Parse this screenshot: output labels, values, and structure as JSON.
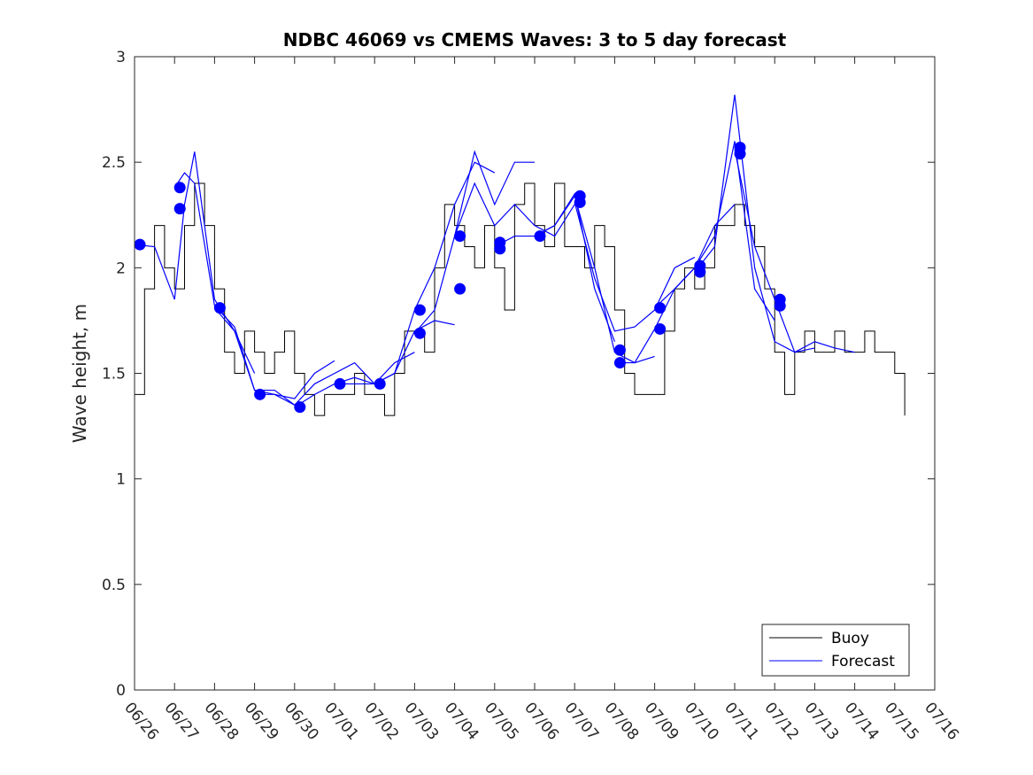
{
  "chart_data": {
    "type": "line",
    "title": "NDBC 46069 vs CMEMS Waves: 3 to 5 day forecast",
    "xlabel": "",
    "ylabel": "Wave height, m",
    "xlim": [
      "06/26",
      "07/16"
    ],
    "ylim": [
      0,
      3
    ],
    "x_ticks": [
      "06/26",
      "06/27",
      "06/28",
      "06/29",
      "06/30",
      "07/01",
      "07/02",
      "07/03",
      "07/04",
      "07/05",
      "07/06",
      "07/07",
      "07/08",
      "07/09",
      "07/10",
      "07/11",
      "07/12",
      "07/13",
      "07/14",
      "07/15",
      "07/16"
    ],
    "y_ticks": [
      "0",
      "0.5",
      "1",
      "1.5",
      "2",
      "2.5",
      "3"
    ],
    "grid": false,
    "legend": {
      "placement": "bottom-right",
      "entries": [
        "Buoy",
        "Forecast"
      ]
    },
    "colors": {
      "buoy": "#000000",
      "forecast": "#0000ff",
      "axes": "#262626"
    },
    "series": [
      {
        "name": "Buoy",
        "x": [
          "06/26 00:00",
          "06/26 06:00",
          "06/26 12:00",
          "06/26 18:00",
          "06/27 00:00",
          "06/27 06:00",
          "06/27 12:00",
          "06/27 18:00",
          "06/28 00:00",
          "06/28 06:00",
          "06/28 12:00",
          "06/28 18:00",
          "06/29 00:00",
          "06/29 06:00",
          "06/29 12:00",
          "06/29 18:00",
          "06/30 00:00",
          "06/30 06:00",
          "06/30 12:00",
          "06/30 18:00",
          "07/01 00:00",
          "07/01 06:00",
          "07/01 12:00",
          "07/01 18:00",
          "07/02 00:00",
          "07/02 06:00",
          "07/02 12:00",
          "07/02 18:00",
          "07/03 00:00",
          "07/03 06:00",
          "07/03 12:00",
          "07/03 18:00",
          "07/04 00:00",
          "07/04 06:00",
          "07/04 12:00",
          "07/04 18:00",
          "07/05 00:00",
          "07/05 06:00",
          "07/05 12:00",
          "07/05 18:00",
          "07/06 00:00",
          "07/06 06:00",
          "07/06 12:00",
          "07/06 18:00",
          "07/07 00:00",
          "07/07 06:00",
          "07/07 12:00",
          "07/07 18:00",
          "07/08 00:00",
          "07/08 06:00",
          "07/08 12:00",
          "07/08 18:00",
          "07/09 00:00",
          "07/09 06:00",
          "07/09 12:00",
          "07/09 18:00",
          "07/10 00:00",
          "07/10 06:00",
          "07/10 12:00",
          "07/10 18:00",
          "07/11 00:00",
          "07/11 06:00",
          "07/11 12:00",
          "07/11 18:00",
          "07/12 00:00",
          "07/12 06:00",
          "07/12 12:00",
          "07/12 18:00",
          "07/13 00:00",
          "07/13 06:00",
          "07/13 12:00",
          "07/13 18:00",
          "07/14 00:00",
          "07/14 06:00",
          "07/14 12:00",
          "07/14 18:00",
          "07/15 00:00",
          "07/15 06:00"
        ],
        "values": [
          1.4,
          1.9,
          2.2,
          2.0,
          1.9,
          2.2,
          2.4,
          2.2,
          1.9,
          1.6,
          1.5,
          1.7,
          1.6,
          1.5,
          1.6,
          1.7,
          1.5,
          1.4,
          1.3,
          1.4,
          1.4,
          1.4,
          1.5,
          1.4,
          1.4,
          1.3,
          1.5,
          1.7,
          1.7,
          1.6,
          2.0,
          2.3,
          2.2,
          2.1,
          2.0,
          2.2,
          2.0,
          1.8,
          2.3,
          2.4,
          2.2,
          2.1,
          2.4,
          2.1,
          2.1,
          2.0,
          2.2,
          2.1,
          1.8,
          1.5,
          1.4,
          1.4,
          1.4,
          1.7,
          1.9,
          2.0,
          1.9,
          2.0,
          2.2,
          2.2,
          2.3,
          2.2,
          2.1,
          1.9,
          1.6,
          1.4,
          1.6,
          1.7,
          1.6,
          1.6,
          1.7,
          1.6,
          1.6,
          1.7,
          1.6,
          1.6,
          1.5,
          1.3
        ]
      },
      {
        "name": "Forecast",
        "runs": [
          {
            "x": [
              "06/26 00:00",
              "06/26 12:00",
              "06/27 00:00",
              "06/27 06:00",
              "06/27 12:00",
              "06/28 00:00",
              "06/28 12:00",
              "06/29 00:00"
            ],
            "values": [
              2.11,
              2.1,
              1.85,
              2.3,
              2.55,
              1.85,
              1.7,
              1.5
            ]
          },
          {
            "x": [
              "06/27 00:00",
              "06/27 06:00",
              "06/27 12:00",
              "06/28 00:00",
              "06/28 12:00",
              "06/29 00:00",
              "06/29 12:00",
              "06/30 00:00"
            ],
            "values": [
              2.38,
              2.45,
              2.4,
              1.82,
              1.72,
              1.42,
              1.42,
              1.35
            ]
          },
          {
            "x": [
              "06/28 00:00",
              "06/28 12:00",
              "06/29 00:00",
              "06/29 12:00",
              "06/30 00:00",
              "06/30 12:00",
              "07/01 00:00"
            ],
            "values": [
              1.81,
              1.7,
              1.42,
              1.4,
              1.38,
              1.5,
              1.56
            ]
          },
          {
            "x": [
              "06/29 00:00",
              "06/29 12:00",
              "06/30 00:00",
              "06/30 12:00",
              "07/01 00:00",
              "07/01 12:00",
              "07/02 00:00"
            ],
            "values": [
              1.4,
              1.4,
              1.35,
              1.45,
              1.5,
              1.55,
              1.45
            ]
          },
          {
            "x": [
              "06/30 00:00",
              "06/30 12:00",
              "07/01 00:00",
              "07/01 12:00",
              "07/02 00:00",
              "07/02 12:00",
              "07/03 00:00"
            ],
            "values": [
              1.34,
              1.4,
              1.45,
              1.48,
              1.45,
              1.55,
              1.6
            ]
          },
          {
            "x": [
              "07/01 00:00",
              "07/01 12:00",
              "07/02 00:00",
              "07/02 12:00",
              "07/03 00:00",
              "07/03 12:00",
              "07/04 00:00"
            ],
            "values": [
              1.45,
              1.45,
              1.45,
              1.5,
              1.7,
              1.75,
              1.73
            ]
          },
          {
            "x": [
              "07/02 00:00",
              "07/02 12:00",
              "07/03 00:00",
              "07/03 12:00",
              "07/04 00:00",
              "07/04 12:00",
              "07/05 00:00"
            ],
            "values": [
              1.45,
              1.5,
              1.8,
              2.0,
              2.3,
              2.5,
              2.45
            ]
          },
          {
            "x": [
              "07/03 00:00",
              "07/03 12:00",
              "07/04 00:00",
              "07/04 12:00",
              "07/05 00:00",
              "07/05 12:00",
              "07/06 00:00"
            ],
            "values": [
              1.69,
              1.8,
              2.15,
              2.55,
              2.3,
              2.5,
              2.5
            ]
          },
          {
            "x": [
              "07/04 00:00",
              "07/04 12:00",
              "07/05 00:00",
              "07/05 12:00",
              "07/06 00:00",
              "07/06 12:00",
              "07/07 00:00"
            ],
            "values": [
              2.15,
              2.4,
              2.2,
              2.3,
              2.2,
              2.15,
              2.3
            ]
          },
          {
            "x": [
              "07/05 00:00",
              "07/05 12:00",
              "07/06 00:00",
              "07/06 12:00",
              "07/07 00:00",
              "07/07 12:00",
              "07/08 00:00"
            ],
            "values": [
              2.1,
              2.15,
              2.15,
              2.2,
              2.35,
              1.9,
              1.65
            ]
          },
          {
            "x": [
              "07/06 00:00",
              "07/06 12:00",
              "07/07 00:00",
              "07/07 12:00",
              "07/08 00:00",
              "07/08 12:00",
              "07/09 00:00"
            ],
            "values": [
              2.15,
              2.2,
              2.34,
              2.0,
              1.6,
              1.55,
              1.58
            ]
          },
          {
            "x": [
              "07/07 00:00",
              "07/07 12:00",
              "07/08 00:00",
              "07/08 12:00",
              "07/09 00:00",
              "07/09 12:00",
              "07/10 00:00"
            ],
            "values": [
              2.31,
              1.95,
              1.7,
              1.72,
              1.8,
              2.0,
              2.05
            ]
          },
          {
            "x": [
              "07/08 00:00",
              "07/08 12:00",
              "07/09 00:00",
              "07/09 12:00",
              "07/10 00:00",
              "07/10 12:00",
              "07/11 00:00"
            ],
            "values": [
              1.55,
              1.55,
              1.71,
              1.9,
              2.0,
              2.2,
              2.3
            ]
          },
          {
            "x": [
              "07/09 00:00",
              "07/09 12:00",
              "07/10 00:00",
              "07/10 12:00",
              "07/11 00:00",
              "07/11 12:00",
              "07/12 00:00"
            ],
            "values": [
              1.81,
              1.9,
              2.0,
              2.15,
              2.6,
              1.9,
              1.75
            ]
          },
          {
            "x": [
              "07/10 00:00",
              "07/10 12:00",
              "07/11 00:00",
              "07/11 12:00",
              "07/12 00:00",
              "07/12 12:00",
              "07/13 00:00"
            ],
            "values": [
              1.98,
              2.1,
              2.82,
              2.0,
              1.65,
              1.6,
              1.62
            ]
          },
          {
            "x": [
              "07/11 00:00",
              "07/11 12:00",
              "07/12 00:00",
              "07/12 12:00",
              "07/13 00:00",
              "07/13 12:00",
              "07/14 00:00"
            ],
            "values": [
              2.56,
              2.1,
              1.85,
              1.6,
              1.65,
              1.62,
              1.6
            ]
          }
        ]
      }
    ],
    "forecast_markers": {
      "x": [
        "06/26",
        "06/27",
        "06/27",
        "06/28",
        "06/29",
        "06/30",
        "07/01",
        "07/02",
        "07/03",
        "07/03",
        "07/04",
        "07/04",
        "07/05",
        "07/05",
        "07/06",
        "07/07",
        "07/07",
        "07/08",
        "07/08",
        "07/09",
        "07/09",
        "07/10",
        "07/10",
        "07/11",
        "07/11",
        "07/12",
        "07/12"
      ],
      "values": [
        2.11,
        2.38,
        2.28,
        1.81,
        1.4,
        1.34,
        1.45,
        1.45,
        1.8,
        1.69,
        2.15,
        1.9,
        2.12,
        2.09,
        2.15,
        2.34,
        2.31,
        1.61,
        1.55,
        1.81,
        1.71,
        2.01,
        1.98,
        2.57,
        2.54,
        1.85,
        1.82
      ]
    }
  }
}
